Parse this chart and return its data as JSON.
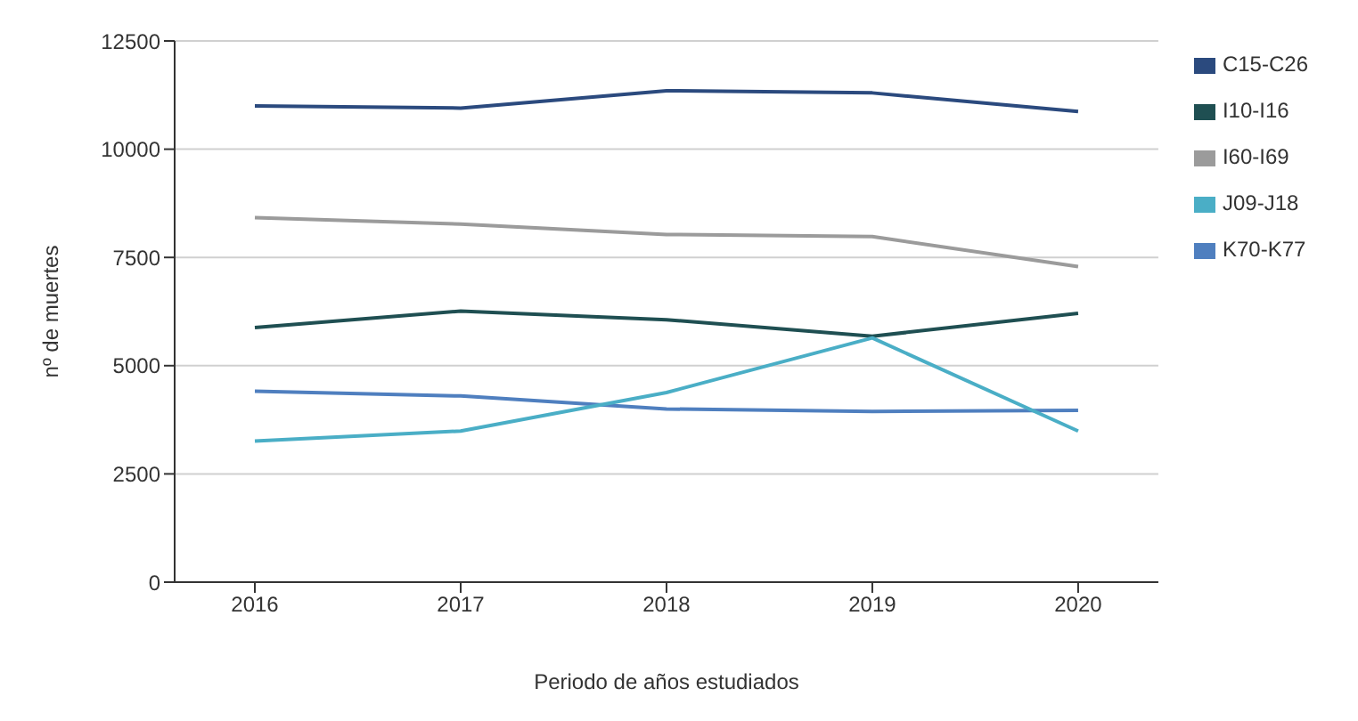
{
  "chart_data": {
    "type": "line",
    "xlabel": "Periodo de años estudiados",
    "ylabel": "nº de muertes",
    "categories": [
      "2016",
      "2017",
      "2018",
      "2019",
      "2020"
    ],
    "series": [
      {
        "name": "C15-C26",
        "color": "#2b4a7e",
        "values": [
          11000,
          10950,
          11350,
          11300,
          10870
        ]
      },
      {
        "name": "I60-I69",
        "color": "#9b9b9b",
        "values": [
          8420,
          8270,
          8030,
          7980,
          7290
        ]
      },
      {
        "name": "I10-I16",
        "color": "#1f4f52",
        "values": [
          5880,
          6260,
          6060,
          5680,
          6210
        ]
      },
      {
        "name": "K70-K77",
        "color": "#4f7fbf",
        "values": [
          4410,
          4300,
          4000,
          3940,
          3970
        ]
      },
      {
        "name": "J09-J18",
        "color": "#4aaec6",
        "values": [
          3260,
          3490,
          4380,
          5640,
          3490
        ]
      }
    ],
    "ylim": [
      0,
      12500
    ],
    "yticks": [
      0,
      2500,
      5000,
      7500,
      10000,
      12500
    ],
    "grid": "y",
    "legend": "top right",
    "marker": "none",
    "line_style": "solid"
  }
}
